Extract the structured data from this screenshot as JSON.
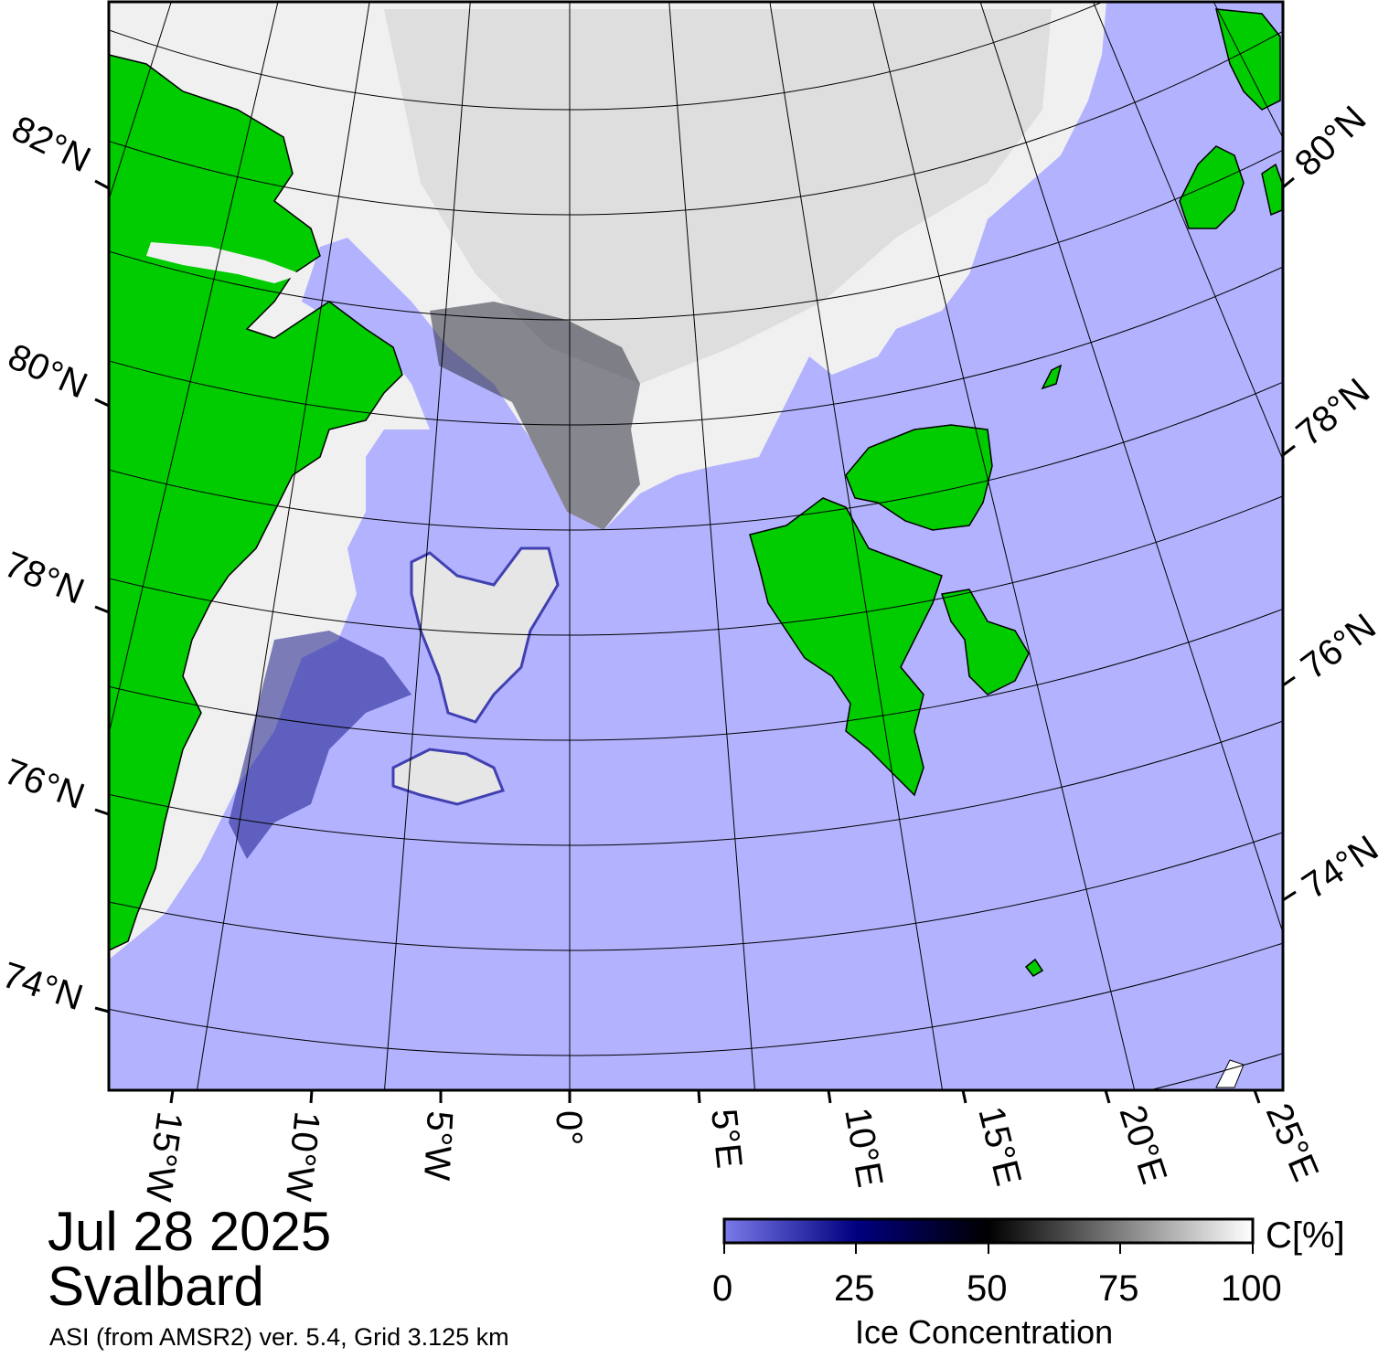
{
  "map": {
    "date": "Jul 28 2025",
    "region": "Svalbard",
    "source": "ASI (from AMSR2) ver. 5.4,  Grid 3.125 km",
    "lat_labels_left": [
      "82°N",
      "80°N",
      "78°N",
      "76°N",
      "74°N"
    ],
    "lat_labels_right": [
      "80°N",
      "78°N",
      "76°N",
      "74°N"
    ],
    "lon_labels": [
      "15°W",
      "10°W",
      "5°W",
      "0°",
      "5°E",
      "10°E",
      "15°E",
      "20°E",
      "25°E"
    ],
    "colors": {
      "open_water": "#b2b2ff",
      "land": "#00cc00",
      "ice_high": "#ffffff",
      "ice_mid": "#000000",
      "ice_low": "#000080",
      "ice_zero": "#7a7ae8"
    }
  },
  "colorbar": {
    "title": "Ice Concentration",
    "unit": "C[%]",
    "ticks": [
      "0",
      "25",
      "50",
      "75",
      "100"
    ],
    "range": [
      0,
      100
    ]
  }
}
